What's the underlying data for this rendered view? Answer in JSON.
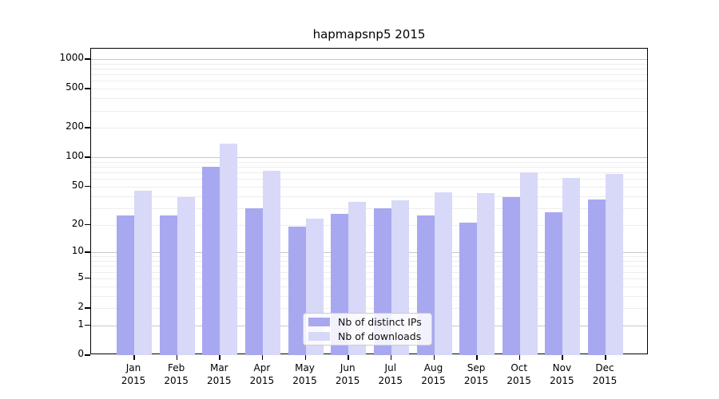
{
  "title": "hapmapsnp5 2015",
  "chart_data": {
    "type": "bar",
    "title": "hapmapsnp5 2015",
    "categories": [
      {
        "month": "Jan",
        "year": "2015"
      },
      {
        "month": "Feb",
        "year": "2015"
      },
      {
        "month": "Mar",
        "year": "2015"
      },
      {
        "month": "Apr",
        "year": "2015"
      },
      {
        "month": "May",
        "year": "2015"
      },
      {
        "month": "Jun",
        "year": "2015"
      },
      {
        "month": "Jul",
        "year": "2015"
      },
      {
        "month": "Aug",
        "year": "2015"
      },
      {
        "month": "Sep",
        "year": "2015"
      },
      {
        "month": "Oct",
        "year": "2015"
      },
      {
        "month": "Nov",
        "year": "2015"
      },
      {
        "month": "Dec",
        "year": "2015"
      }
    ],
    "series": [
      {
        "name": "Nb of distinct IPs",
        "color": "#a8a8f0",
        "values": [
          25,
          25,
          80,
          30,
          19,
          26,
          30,
          25,
          21,
          39,
          27,
          37
        ]
      },
      {
        "name": "Nb of downloads",
        "color": "#d8d8f8",
        "values": [
          45,
          39,
          138,
          73,
          23,
          35,
          36,
          44,
          43,
          70,
          61,
          67
        ]
      }
    ],
    "yscale": "log1p",
    "yticks": [
      0,
      1,
      2,
      5,
      10,
      20,
      50,
      100,
      200,
      500,
      1000
    ],
    "major_grid_values": [
      1,
      10,
      100,
      1000
    ],
    "ylim": [
      0,
      1275
    ],
    "xlabel": "",
    "ylabel": "",
    "grid": "horizontal",
    "legend_position": "inside-bottom-center",
    "colors": {
      "major_grid": "#c8c8c8",
      "minor_grid": "#ededed",
      "spine": "#000000",
      "background": "#ffffff"
    }
  }
}
